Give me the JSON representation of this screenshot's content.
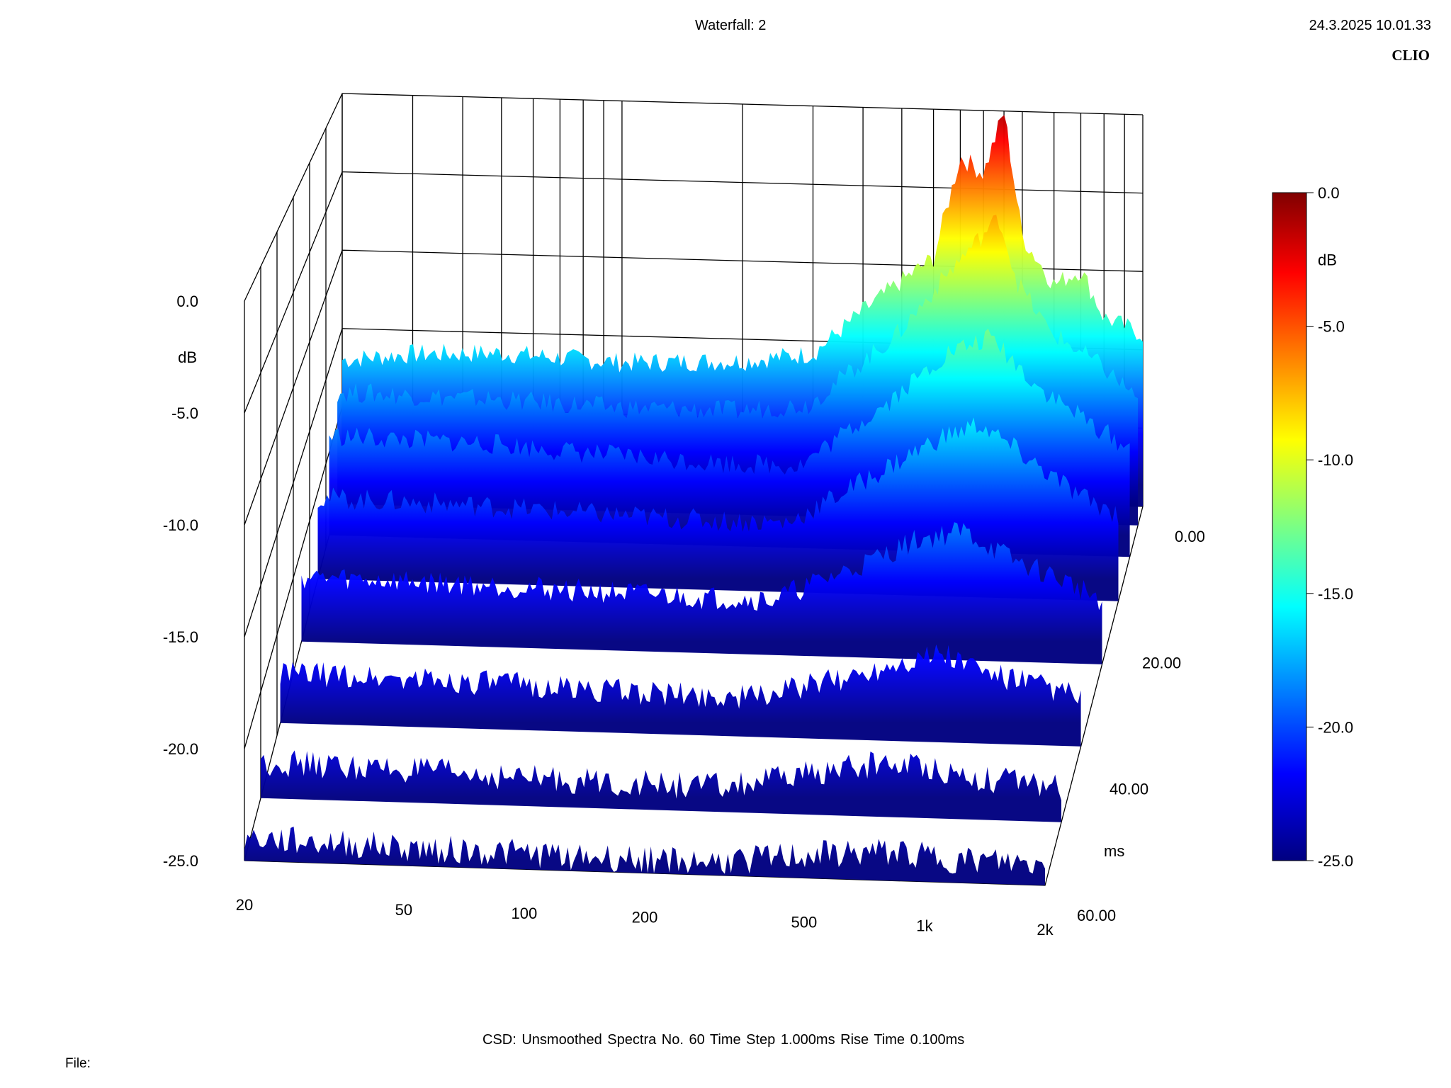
{
  "header": {
    "title": "Waterfall: 2",
    "date": "24.3.2025 10.01.33",
    "brand": "CLIO"
  },
  "footer": {
    "info": "CSD:   Unsmoothed   Spectra No. 60   Time Step 1.000ms   Rise Time 0.100ms",
    "file_label": "File:"
  },
  "chart_data": {
    "type": "waterfall",
    "z_unit": "dB",
    "time_unit": "ms",
    "x_ticks": [
      "20",
      "50",
      "100",
      "200",
      "500",
      "1k",
      "2k"
    ],
    "z_ticks": [
      "0.0",
      "-5.0",
      "-10.0",
      "-15.0",
      "-20.0",
      "-25.0"
    ],
    "t_ticks": [
      "0.00",
      "20.00",
      "40.00",
      "60.00"
    ],
    "colorbar_ticks": [
      "0.0",
      "-5.0",
      "-10.0",
      "-15.0",
      "-20.0",
      "-25.0"
    ],
    "colorbar_unit": "dB",
    "frequency_range_hz": [
      20,
      2000
    ],
    "level_range_db": [
      -25,
      0
    ],
    "time_range_ms": [
      0,
      60
    ],
    "spectra_count": 60,
    "time_step_ms": 1.0,
    "grid": true,
    "colormap": [
      "#000080",
      "#0000ff",
      "#00ffff",
      "#ffff00",
      "#ff0000",
      "#800000"
    ],
    "series": [
      {
        "t": 0,
        "points": [
          [
            20,
            -17
          ],
          [
            30,
            -16.5
          ],
          [
            50,
            -16.3
          ],
          [
            100,
            -16.7
          ],
          [
            200,
            -16.4
          ],
          [
            300,
            -15.8
          ],
          [
            400,
            -13
          ],
          [
            500,
            -11
          ],
          [
            600,
            -9.5
          ],
          [
            700,
            -3
          ],
          [
            800,
            -4
          ],
          [
            900,
            0
          ],
          [
            1000,
            -8
          ],
          [
            1200,
            -11
          ],
          [
            1400,
            -10
          ],
          [
            1600,
            -13
          ],
          [
            2000,
            -14
          ]
        ]
      },
      {
        "t": 3,
        "points": [
          [
            20,
            -18
          ],
          [
            50,
            -18.2
          ],
          [
            100,
            -18.5
          ],
          [
            200,
            -18.5
          ],
          [
            300,
            -18
          ],
          [
            500,
            -13.5
          ],
          [
            700,
            -9
          ],
          [
            900,
            -6
          ],
          [
            1000,
            -10
          ],
          [
            1200,
            -13
          ],
          [
            1600,
            -15
          ],
          [
            2000,
            -17
          ]
        ]
      },
      {
        "t": 8,
        "points": [
          [
            20,
            -19
          ],
          [
            50,
            -19.2
          ],
          [
            100,
            -19.7
          ],
          [
            200,
            -20
          ],
          [
            300,
            -20
          ],
          [
            500,
            -16
          ],
          [
            700,
            -13
          ],
          [
            900,
            -12
          ],
          [
            1200,
            -15
          ],
          [
            1600,
            -17
          ],
          [
            2000,
            -18.5
          ]
        ]
      },
      {
        "t": 15,
        "points": [
          [
            20,
            -20.3
          ],
          [
            50,
            -20.5
          ],
          [
            100,
            -20.8
          ],
          [
            200,
            -21
          ],
          [
            300,
            -21
          ],
          [
            500,
            -18
          ],
          [
            700,
            -16
          ],
          [
            900,
            -15
          ],
          [
            1200,
            -17
          ],
          [
            1600,
            -19
          ],
          [
            2000,
            -20
          ]
        ]
      },
      {
        "t": 25,
        "points": [
          [
            20,
            -21.5
          ],
          [
            50,
            -21.6
          ],
          [
            100,
            -21.8
          ],
          [
            200,
            -22
          ],
          [
            300,
            -22
          ],
          [
            500,
            -20
          ],
          [
            700,
            -18.5
          ],
          [
            900,
            -18
          ],
          [
            1200,
            -19.5
          ],
          [
            1600,
            -20.5
          ],
          [
            2000,
            -21.5
          ]
        ]
      },
      {
        "t": 38,
        "points": [
          [
            20,
            -22.5
          ],
          [
            50,
            -22.6
          ],
          [
            100,
            -22.8
          ],
          [
            200,
            -23
          ],
          [
            300,
            -23
          ],
          [
            500,
            -22
          ],
          [
            700,
            -21
          ],
          [
            900,
            -20.5
          ],
          [
            1200,
            -21.5
          ],
          [
            1600,
            -22
          ],
          [
            2000,
            -22.5
          ]
        ]
      },
      {
        "t": 50,
        "points": [
          [
            20,
            -23.3
          ],
          [
            50,
            -23.5
          ],
          [
            100,
            -23.7
          ],
          [
            200,
            -23.8
          ],
          [
            300,
            -23.8
          ],
          [
            500,
            -23
          ],
          [
            700,
            -22.5
          ],
          [
            900,
            -22.5
          ],
          [
            1200,
            -23
          ],
          [
            1600,
            -23.2
          ],
          [
            2000,
            -23.4
          ]
        ]
      },
      {
        "t": 60,
        "points": [
          [
            20,
            -24
          ],
          [
            50,
            -24.2
          ],
          [
            100,
            -24.3
          ],
          [
            200,
            -24.4
          ],
          [
            300,
            -24.4
          ],
          [
            500,
            -24
          ],
          [
            700,
            -23.8
          ],
          [
            900,
            -23.7
          ],
          [
            1200,
            -24
          ],
          [
            1600,
            -24
          ],
          [
            2000,
            -24.1
          ]
        ]
      }
    ]
  }
}
